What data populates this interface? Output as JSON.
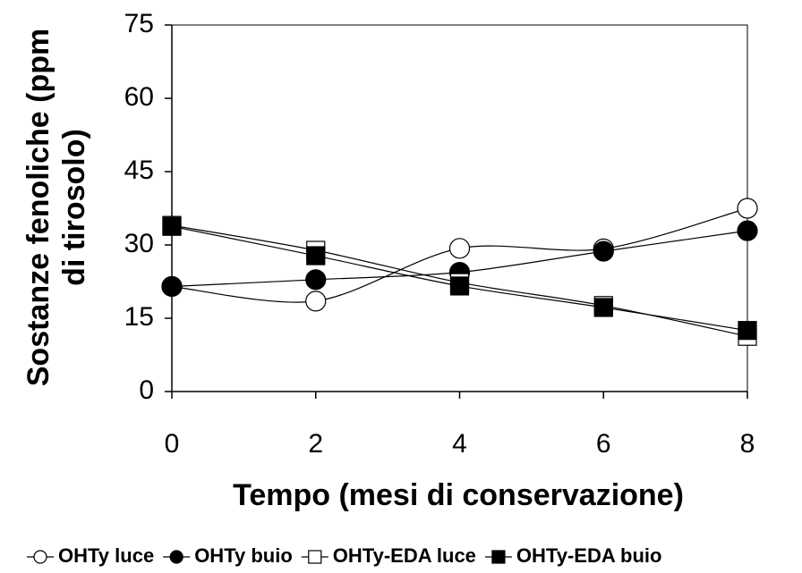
{
  "chart_data": {
    "type": "line",
    "xlabel": "Tempo (mesi di conservazione)",
    "ylabel": [
      "Sostanze fenoliche (ppm",
      "di tirosolo)"
    ],
    "x": [
      0,
      2,
      4,
      6,
      8
    ],
    "xlim": [
      0,
      8
    ],
    "xticks": [
      0,
      2,
      4,
      6,
      8
    ],
    "ylim": [
      0,
      75
    ],
    "yticks": [
      0,
      15,
      30,
      45,
      60,
      75
    ],
    "series": [
      {
        "name": "OHTy luce",
        "color": "#000000",
        "marker": "circle",
        "filled": false,
        "values": [
          21.5,
          18.5,
          29.3,
          29.2,
          37.5
        ]
      },
      {
        "name": "OHTy buio",
        "color": "#000000",
        "marker": "circle",
        "filled": true,
        "values": [
          21.5,
          22.9,
          24.4,
          28.7,
          32.9
        ]
      },
      {
        "name": "OHTy-EDA luce",
        "color": "#000000",
        "marker": "square",
        "filled": false,
        "values": [
          34,
          28.9,
          22.3,
          17.6,
          11.3
        ]
      },
      {
        "name": "OHTy-EDA buio",
        "color": "#000000",
        "marker": "square",
        "filled": true,
        "values": [
          33.8,
          27.8,
          21.6,
          17.2,
          12.5
        ]
      }
    ],
    "legend": "bottom"
  }
}
